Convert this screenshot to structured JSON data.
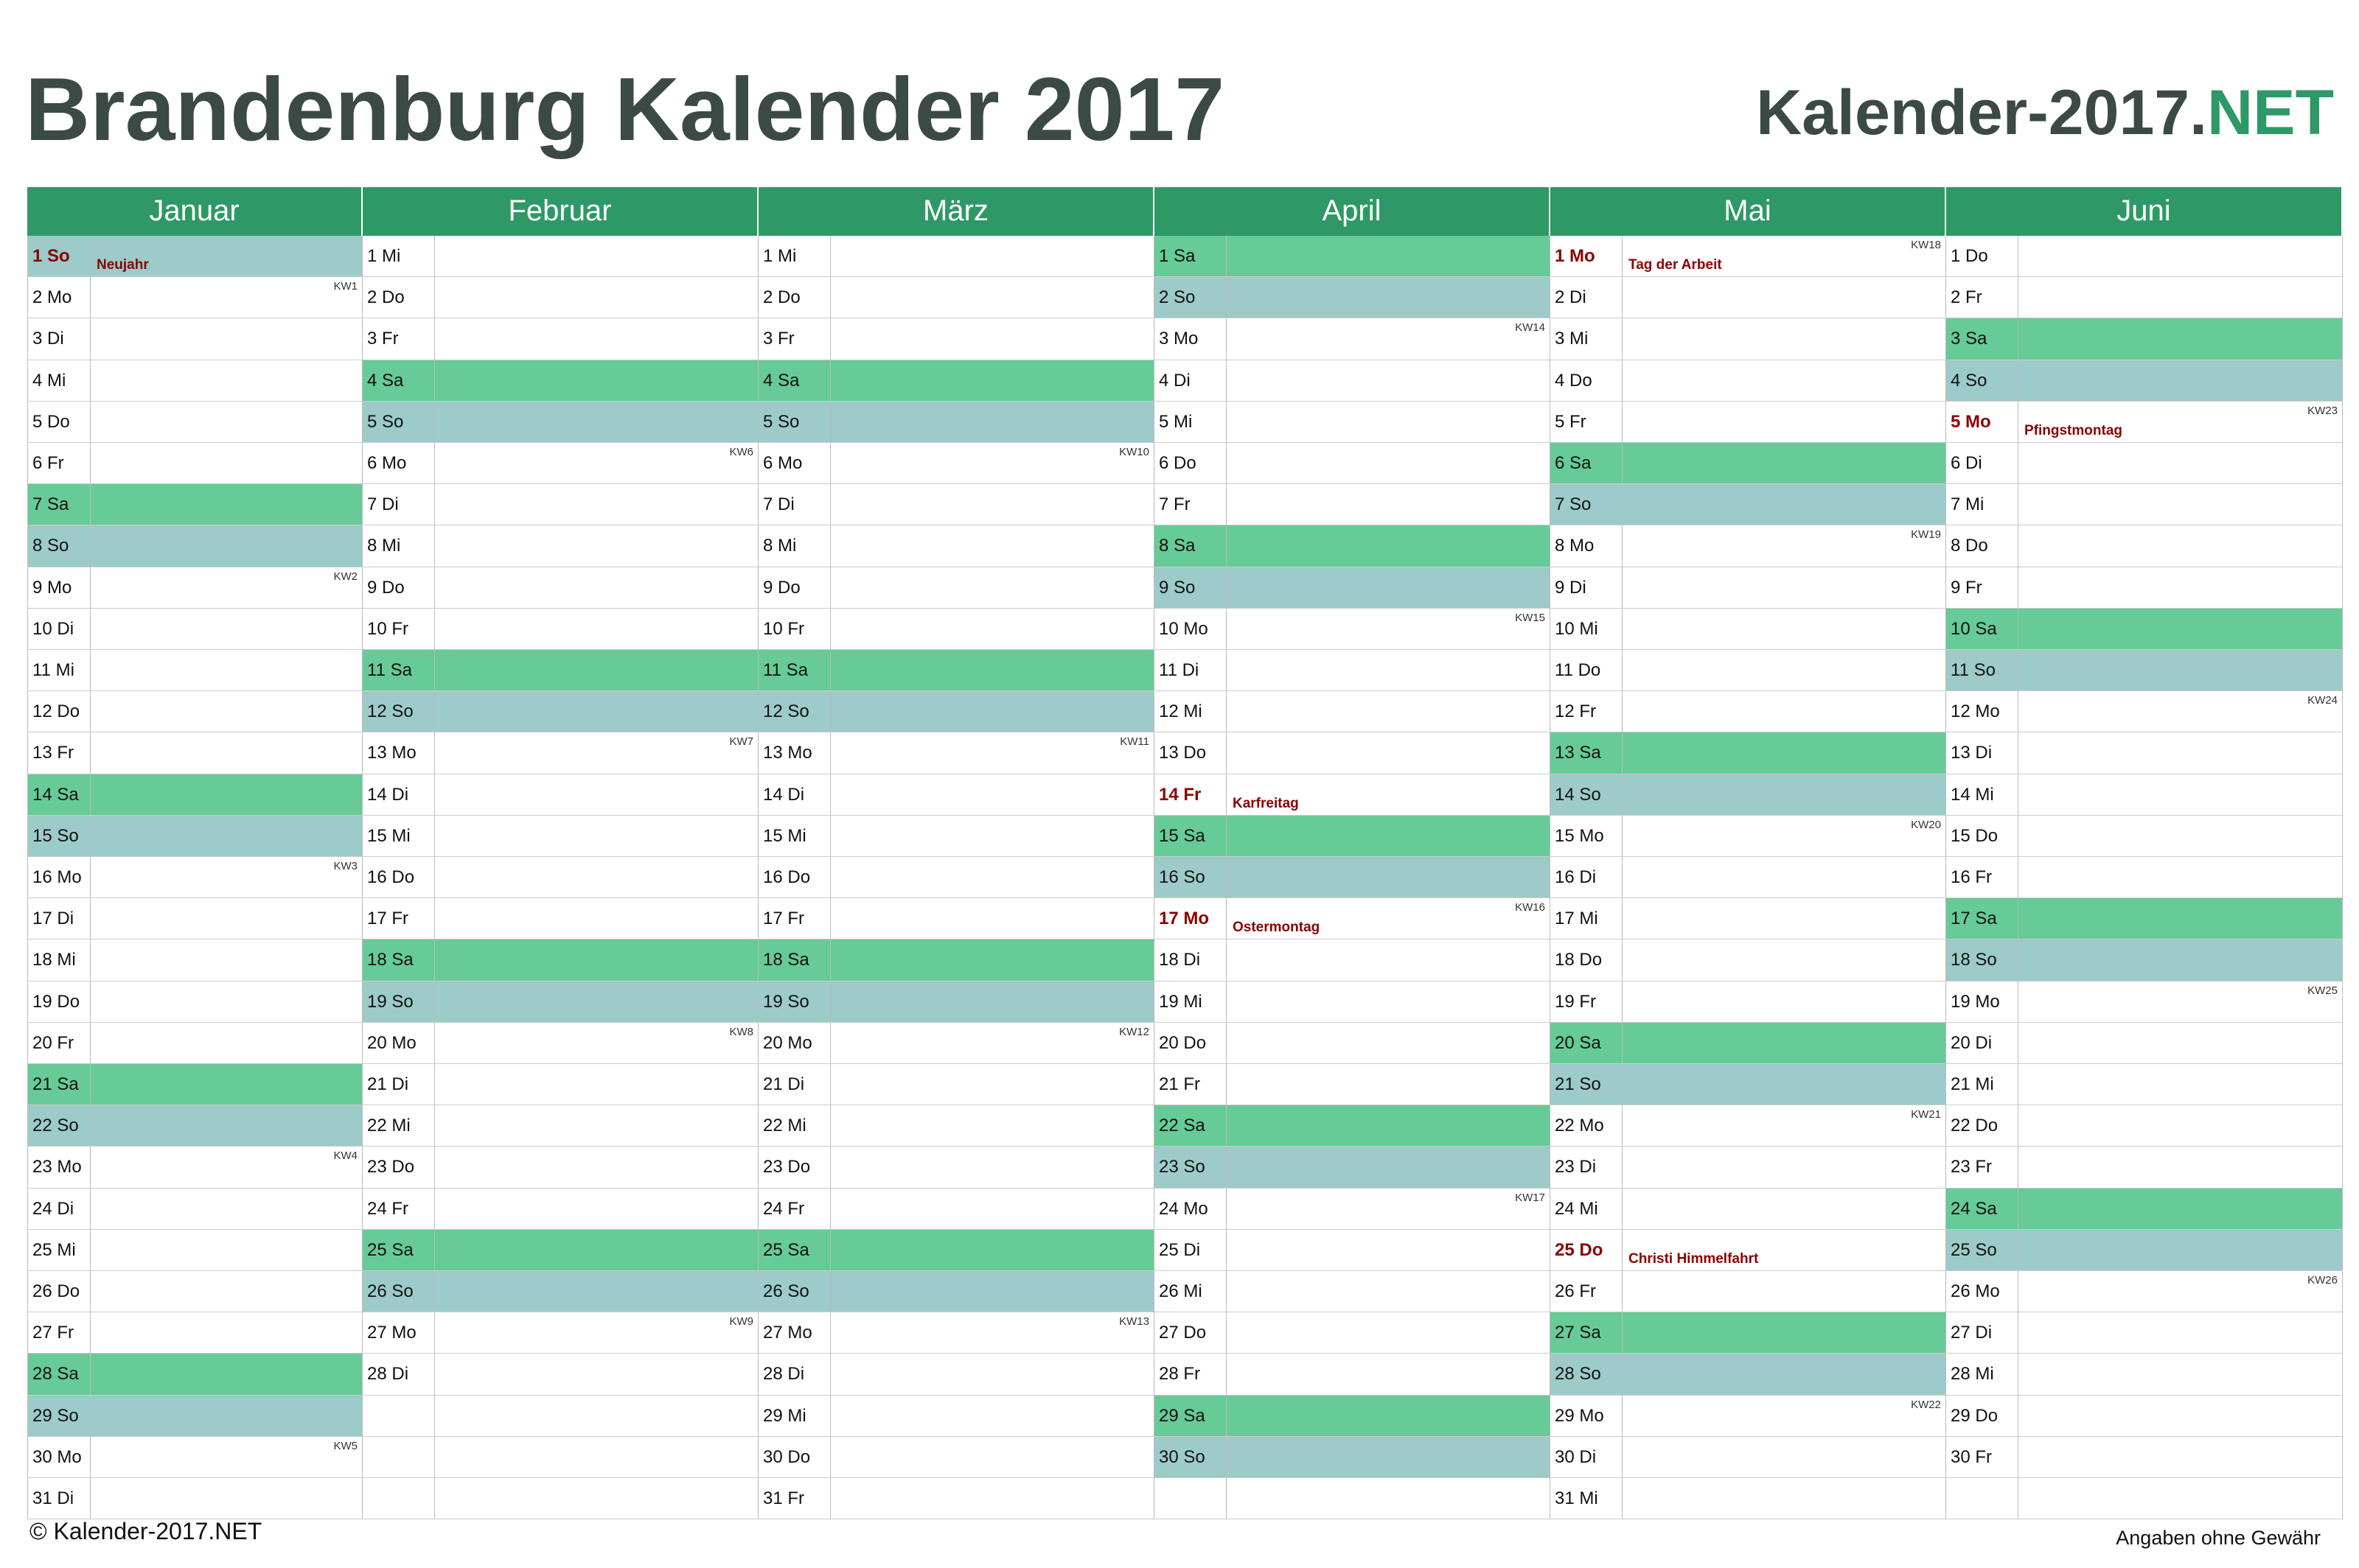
{
  "header": {
    "title": "Brandenburg Kalender 2017",
    "logo": {
      "main": "Kalender-2017.",
      "accent": "NET"
    }
  },
  "months": [
    {
      "name": "Januar",
      "days": [
        {
          "day": "1 So",
          "note": "Neujahr"
        },
        {
          "day": "2 Mo",
          "kw": "KW1"
        },
        {
          "day": "3 Di"
        },
        {
          "day": "4 Mi"
        },
        {
          "day": "5 Do"
        },
        {
          "day": "6 Fr"
        },
        {
          "day": "7 Sa"
        },
        {
          "day": "8 So"
        },
        {
          "day": "9 Mo",
          "kw": "KW2"
        },
        {
          "day": "10 Di"
        },
        {
          "day": "11 Mi"
        },
        {
          "day": "12 Do"
        },
        {
          "day": "13 Fr"
        },
        {
          "day": "14 Sa"
        },
        {
          "day": "15 So"
        },
        {
          "day": "16 Mo",
          "kw": "KW3"
        },
        {
          "day": "17 Di"
        },
        {
          "day": "18 Mi"
        },
        {
          "day": "19 Do"
        },
        {
          "day": "20 Fr"
        },
        {
          "day": "21 Sa"
        },
        {
          "day": "22 So"
        },
        {
          "day": "23 Mo",
          "kw": "KW4"
        },
        {
          "day": "24 Di"
        },
        {
          "day": "25 Mi"
        },
        {
          "day": "26 Do"
        },
        {
          "day": "27 Fr"
        },
        {
          "day": "28 Sa"
        },
        {
          "day": "29 So"
        },
        {
          "day": "30 Mo",
          "kw": "KW5"
        },
        {
          "day": "31 Di"
        }
      ]
    },
    {
      "name": "Februar",
      "days": [
        {
          "day": "1 Mi"
        },
        {
          "day": "2 Do"
        },
        {
          "day": "3 Fr"
        },
        {
          "day": "4 Sa"
        },
        {
          "day": "5 So"
        },
        {
          "day": "6 Mo",
          "kw": "KW6"
        },
        {
          "day": "7 Di"
        },
        {
          "day": "8 Mi"
        },
        {
          "day": "9 Do"
        },
        {
          "day": "10 Fr"
        },
        {
          "day": "11 Sa"
        },
        {
          "day": "12 So"
        },
        {
          "day": "13 Mo",
          "kw": "KW7"
        },
        {
          "day": "14 Di"
        },
        {
          "day": "15 Mi"
        },
        {
          "day": "16 Do"
        },
        {
          "day": "17 Fr"
        },
        {
          "day": "18 Sa"
        },
        {
          "day": "19 So"
        },
        {
          "day": "20 Mo",
          "kw": "KW8"
        },
        {
          "day": "21 Di"
        },
        {
          "day": "22 Mi"
        },
        {
          "day": "23 Do"
        },
        {
          "day": "24 Fr"
        },
        {
          "day": "25 Sa"
        },
        {
          "day": "26 So"
        },
        {
          "day": "27 Mo",
          "kw": "KW9"
        },
        {
          "day": "28 Di"
        }
      ]
    },
    {
      "name": "März",
      "days": [
        {
          "day": "1 Mi"
        },
        {
          "day": "2 Do"
        },
        {
          "day": "3 Fr"
        },
        {
          "day": "4 Sa"
        },
        {
          "day": "5 So"
        },
        {
          "day": "6 Mo",
          "kw": "KW10"
        },
        {
          "day": "7 Di"
        },
        {
          "day": "8 Mi"
        },
        {
          "day": "9 Do"
        },
        {
          "day": "10 Fr"
        },
        {
          "day": "11 Sa"
        },
        {
          "day": "12 So"
        },
        {
          "day": "13 Mo",
          "kw": "KW11"
        },
        {
          "day": "14 Di"
        },
        {
          "day": "15 Mi"
        },
        {
          "day": "16 Do"
        },
        {
          "day": "17 Fr"
        },
        {
          "day": "18 Sa"
        },
        {
          "day": "19 So"
        },
        {
          "day": "20 Mo",
          "kw": "KW12"
        },
        {
          "day": "21 Di"
        },
        {
          "day": "22 Mi"
        },
        {
          "day": "23 Do"
        },
        {
          "day": "24 Fr"
        },
        {
          "day": "25 Sa"
        },
        {
          "day": "26 So"
        },
        {
          "day": "27 Mo",
          "kw": "KW13"
        },
        {
          "day": "28 Di"
        },
        {
          "day": "29 Mi"
        },
        {
          "day": "30 Do"
        },
        {
          "day": "31 Fr"
        }
      ]
    },
    {
      "name": "April",
      "days": [
        {
          "day": "1 Sa"
        },
        {
          "day": "2 So"
        },
        {
          "day": "3 Mo",
          "kw": "KW14"
        },
        {
          "day": "4 Di"
        },
        {
          "day": "5 Mi"
        },
        {
          "day": "6 Do"
        },
        {
          "day": "7 Fr"
        },
        {
          "day": "8 Sa"
        },
        {
          "day": "9 So"
        },
        {
          "day": "10 Mo",
          "kw": "KW15"
        },
        {
          "day": "11 Di"
        },
        {
          "day": "12 Mi"
        },
        {
          "day": "13 Do"
        },
        {
          "day": "14 Fr",
          "note": "Karfreitag"
        },
        {
          "day": "15 Sa"
        },
        {
          "day": "16 So"
        },
        {
          "day": "17 Mo",
          "note": "Ostermontag",
          "kw": "KW16"
        },
        {
          "day": "18 Di"
        },
        {
          "day": "19 Mi"
        },
        {
          "day": "20 Do"
        },
        {
          "day": "21 Fr"
        },
        {
          "day": "22 Sa"
        },
        {
          "day": "23 So"
        },
        {
          "day": "24 Mo",
          "kw": "KW17"
        },
        {
          "day": "25 Di"
        },
        {
          "day": "26 Mi"
        },
        {
          "day": "27 Do"
        },
        {
          "day": "28 Fr"
        },
        {
          "day": "29 Sa"
        },
        {
          "day": "30 So"
        }
      ]
    },
    {
      "name": "Mai",
      "days": [
        {
          "day": "1 Mo",
          "note": "Tag der Arbeit",
          "kw": "KW18"
        },
        {
          "day": "2 Di"
        },
        {
          "day": "3 Mi"
        },
        {
          "day": "4 Do"
        },
        {
          "day": "5 Fr"
        },
        {
          "day": "6 Sa"
        },
        {
          "day": "7 So"
        },
        {
          "day": "8 Mo",
          "kw": "KW19"
        },
        {
          "day": "9 Di"
        },
        {
          "day": "10 Mi"
        },
        {
          "day": "11 Do"
        },
        {
          "day": "12 Fr"
        },
        {
          "day": "13 Sa"
        },
        {
          "day": "14 So"
        },
        {
          "day": "15 Mo",
          "kw": "KW20"
        },
        {
          "day": "16 Di"
        },
        {
          "day": "17 Mi"
        },
        {
          "day": "18 Do"
        },
        {
          "day": "19 Fr"
        },
        {
          "day": "20 Sa"
        },
        {
          "day": "21 So"
        },
        {
          "day": "22 Mo",
          "kw": "KW21"
        },
        {
          "day": "23 Di"
        },
        {
          "day": "24 Mi"
        },
        {
          "day": "25 Do",
          "note": "Christi Himmelfahrt"
        },
        {
          "day": "26 Fr"
        },
        {
          "day": "27 Sa"
        },
        {
          "day": "28 So"
        },
        {
          "day": "29 Mo",
          "kw": "KW22"
        },
        {
          "day": "30 Di"
        },
        {
          "day": "31 Mi"
        }
      ]
    },
    {
      "name": "Juni",
      "days": [
        {
          "day": "1 Do"
        },
        {
          "day": "2 Fr"
        },
        {
          "day": "3 Sa"
        },
        {
          "day": "4 So"
        },
        {
          "day": "5 Mo",
          "note": "Pfingstmontag",
          "kw": "KW23"
        },
        {
          "day": "6 Di"
        },
        {
          "day": "7 Mi"
        },
        {
          "day": "8 Do"
        },
        {
          "day": "9 Fr"
        },
        {
          "day": "10 Sa"
        },
        {
          "day": "11 So"
        },
        {
          "day": "12 Mo",
          "kw": "KW24"
        },
        {
          "day": "13 Di"
        },
        {
          "day": "14 Mi"
        },
        {
          "day": "15 Do"
        },
        {
          "day": "16 Fr"
        },
        {
          "day": "17 Sa"
        },
        {
          "day": "18 So"
        },
        {
          "day": "19 Mo",
          "kw": "KW25"
        },
        {
          "day": "20 Di"
        },
        {
          "day": "21 Mi"
        },
        {
          "day": "22 Do"
        },
        {
          "day": "23 Fr"
        },
        {
          "day": "24 Sa"
        },
        {
          "day": "25 So"
        },
        {
          "day": "26 Mo",
          "kw": "KW26"
        },
        {
          "day": "27 Di"
        },
        {
          "day": "28 Mi"
        },
        {
          "day": "29 Do"
        },
        {
          "day": "30 Fr"
        }
      ]
    }
  ],
  "footer": {
    "copyright": "© Kalender-2017.NET",
    "disclaimer": "Angaben ohne Gewähr"
  }
}
